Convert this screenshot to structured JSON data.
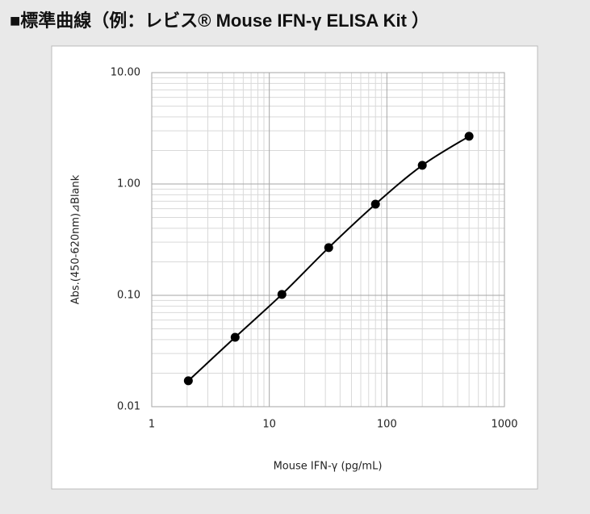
{
  "chart_data": {
    "type": "line",
    "title": "■標準曲線（例：レビス® Mouse IFN-γ ELISA Kit ）",
    "x_label": "Mouse IFN-γ (pg/mL)",
    "y_label": "Abs.(450-620nm)⊿Blank",
    "x": [
      2.048,
      5.12,
      12.8,
      32,
      80,
      200,
      500
    ],
    "series": [
      {
        "name": "Abs",
        "color": "#000000",
        "values": [
          0.0171,
          0.042,
          0.102,
          0.268,
          0.659,
          1.47,
          2.68
        ]
      }
    ],
    "xlim": [
      1,
      1000
    ],
    "ylim": [
      0.01,
      10
    ],
    "xlog": true,
    "ylog": true,
    "xticks": [
      1,
      10,
      100,
      1000
    ],
    "yticks": [
      {
        "value": 0.01,
        "label": "0.01"
      },
      {
        "value": 0.1,
        "label": "0.10"
      },
      {
        "value": 1,
        "label": "1.00"
      },
      {
        "value": 10,
        "label": "10.00"
      }
    ],
    "grid": true
  }
}
